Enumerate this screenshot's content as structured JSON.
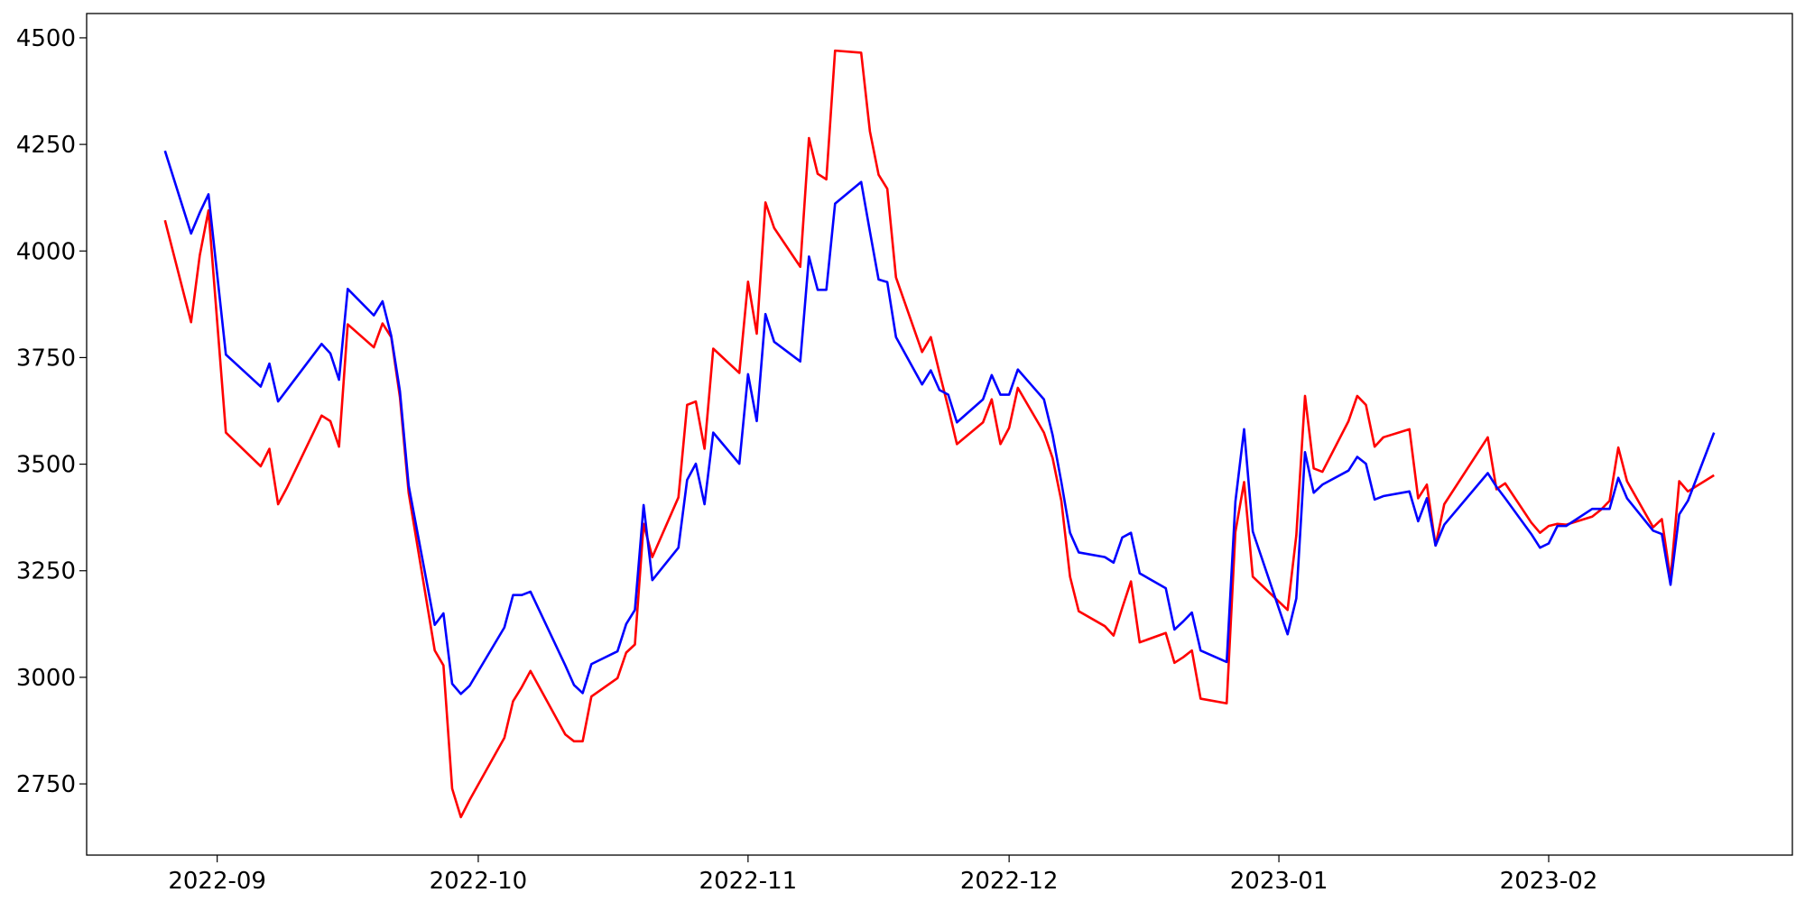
{
  "chart_data": {
    "type": "line",
    "x": [
      "2022-08-26",
      "2022-08-29",
      "2022-08-30",
      "2022-08-31",
      "2022-09-02",
      "2022-09-06",
      "2022-09-07",
      "2022-09-08",
      "2022-09-09",
      "2022-09-13",
      "2022-09-14",
      "2022-09-15",
      "2022-09-16",
      "2022-09-19",
      "2022-09-20",
      "2022-09-21",
      "2022-09-22",
      "2022-09-23",
      "2022-09-26",
      "2022-09-27",
      "2022-09-28",
      "2022-09-29",
      "2022-09-30",
      "2022-10-04",
      "2022-10-05",
      "2022-10-06",
      "2022-10-07",
      "2022-10-11",
      "2022-10-12",
      "2022-10-13",
      "2022-10-14",
      "2022-10-17",
      "2022-10-18",
      "2022-10-19",
      "2022-10-20",
      "2022-10-21",
      "2022-10-24",
      "2022-10-25",
      "2022-10-26",
      "2022-10-27",
      "2022-10-28",
      "2022-10-31",
      "2022-11-01",
      "2022-11-02",
      "2022-11-03",
      "2022-11-04",
      "2022-11-07",
      "2022-11-08",
      "2022-11-09",
      "2022-11-10",
      "2022-11-11",
      "2022-11-14",
      "2022-11-15",
      "2022-11-16",
      "2022-11-17",
      "2022-11-18",
      "2022-11-21",
      "2022-11-22",
      "2022-11-23",
      "2022-11-24",
      "2022-11-25",
      "2022-11-28",
      "2022-11-29",
      "2022-11-30",
      "2022-12-01",
      "2022-12-02",
      "2022-12-05",
      "2022-12-06",
      "2022-12-07",
      "2022-12-08",
      "2022-12-09",
      "2022-12-12",
      "2022-12-13",
      "2022-12-14",
      "2022-12-15",
      "2022-12-16",
      "2022-12-19",
      "2022-12-20",
      "2022-12-21",
      "2022-12-22",
      "2022-12-23",
      "2022-12-26",
      "2022-12-27",
      "2022-12-28",
      "2022-12-29",
      "2023-01-02",
      "2023-01-03",
      "2023-01-04",
      "2023-01-05",
      "2023-01-06",
      "2023-01-09",
      "2023-01-10",
      "2023-01-11",
      "2023-01-12",
      "2023-01-13",
      "2023-01-16",
      "2023-01-17",
      "2023-01-18",
      "2023-01-19",
      "2023-01-20",
      "2023-01-25",
      "2023-01-26",
      "2023-01-27",
      "2023-01-30",
      "2023-01-31",
      "2023-02-01",
      "2023-02-02",
      "2023-02-03",
      "2023-02-06",
      "2023-02-07",
      "2023-02-08",
      "2023-02-09",
      "2023-02-10",
      "2023-02-13",
      "2023-02-14",
      "2023-02-15",
      "2023-02-16",
      "2023-02-17",
      "2023-02-20"
    ],
    "series": [
      {
        "color": "#ff0000",
        "values": [
          4072,
          3833,
          3990,
          4095,
          3574,
          3495,
          3536,
          3406,
          3444,
          3614,
          3601,
          3541,
          3828,
          3774,
          3830,
          3798,
          3657,
          3433,
          3063,
          3028,
          2739,
          2672,
          2712,
          2858,
          2944,
          2977,
          3015,
          2866,
          2850,
          2850,
          2955,
          2998,
          3058,
          3077,
          3360,
          3282,
          3422,
          3639,
          3647,
          3536,
          3771,
          3714,
          3928,
          3806,
          4114,
          4054,
          3963,
          4265,
          4181,
          4168,
          4470,
          4465,
          4281,
          4179,
          4146,
          3938,
          3763,
          3798,
          3714,
          3633,
          3547,
          3598,
          3652,
          3547,
          3585,
          3679,
          3574,
          3514,
          3414,
          3236,
          3155,
          3120,
          3098,
          3163,
          3225,
          3082,
          3104,
          3034,
          3047,
          3063,
          2950,
          2939,
          3341,
          3458,
          3236,
          3158,
          3333,
          3660,
          3490,
          3482,
          3601,
          3660,
          3639,
          3541,
          3563,
          3582,
          3420,
          3452,
          3309,
          3406,
          3563,
          3441,
          3455,
          3363,
          3339,
          3355,
          3360,
          3358,
          3377,
          3393,
          3414,
          3539,
          3460,
          3352,
          3371,
          3231,
          3460,
          3436,
          3474
        ]
      },
      {
        "color": "#0000ff",
        "values": [
          4235,
          4041,
          4090,
          4133,
          3757,
          3682,
          3736,
          3647,
          3674,
          3782,
          3760,
          3698,
          3911,
          3849,
          3882,
          3801,
          3671,
          3450,
          3123,
          3150,
          2985,
          2961,
          2980,
          3117,
          3193,
          3193,
          3201,
          3028,
          2982,
          2963,
          3031,
          3061,
          3125,
          3158,
          3404,
          3228,
          3304,
          3463,
          3501,
          3406,
          3574,
          3501,
          3711,
          3601,
          3852,
          3787,
          3741,
          3987,
          3909,
          3909,
          4111,
          4162,
          4046,
          3933,
          3927,
          3798,
          3687,
          3720,
          3674,
          3663,
          3598,
          3652,
          3709,
          3663,
          3663,
          3722,
          3652,
          3568,
          3458,
          3339,
          3293,
          3282,
          3269,
          3328,
          3339,
          3244,
          3209,
          3112,
          3131,
          3152,
          3063,
          3036,
          3412,
          3582,
          3342,
          3101,
          3185,
          3528,
          3433,
          3452,
          3485,
          3517,
          3501,
          3417,
          3425,
          3436,
          3366,
          3420,
          3309,
          3358,
          3479,
          3447,
          3420,
          3336,
          3304,
          3314,
          3355,
          3355,
          3395,
          3395,
          3395,
          3468,
          3420,
          3344,
          3336,
          3217,
          3382,
          3414,
          3574
        ]
      }
    ],
    "xlim": [
      "2022-08-17",
      "2023-03-01"
    ],
    "xticks": [
      {
        "value": "2022-09-01",
        "label": "2022-09"
      },
      {
        "value": "2022-10-01",
        "label": "2022-10"
      },
      {
        "value": "2022-11-01",
        "label": "2022-11"
      },
      {
        "value": "2022-12-01",
        "label": "2022-12"
      },
      {
        "value": "2023-01-01",
        "label": "2023-01"
      },
      {
        "value": "2023-02-01",
        "label": "2023-02"
      }
    ],
    "ylim": [
      2583,
      4557
    ],
    "yticks": [
      2750,
      3000,
      3250,
      3500,
      3750,
      4000,
      4250,
      4500
    ]
  }
}
